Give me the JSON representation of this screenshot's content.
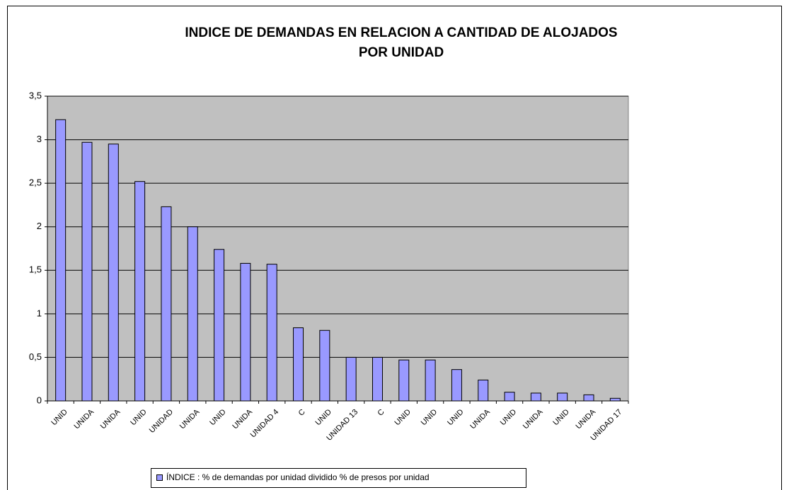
{
  "chart_data": {
    "type": "bar",
    "title": [
      "INDICE DE DEMANDAS EN RELACION A CANTIDAD DE ALOJADOS",
      "POR UNIDAD"
    ],
    "categories": [
      "UNID",
      "UNIDA",
      "UNIDA",
      "UNID",
      "UNIDAD",
      "UNIDA",
      "UNID",
      "UNIDA",
      "UNIDAD 4",
      "C",
      "UNID",
      "UNIDAD 13",
      "C",
      "UNID",
      "UNID",
      "UNID",
      "UNIDA",
      "UNID",
      "UNIDA",
      "UNID",
      "UNIDA",
      "UNIDAD 17"
    ],
    "series": [
      {
        "name": "ÍNDICE : % de demandas por unidad dividido % de presos por unidad",
        "color": "#9999ff",
        "values": [
          3.23,
          2.97,
          2.95,
          2.52,
          2.23,
          2.0,
          1.74,
          1.58,
          1.57,
          0.84,
          0.81,
          0.5,
          0.5,
          0.47,
          0.47,
          0.36,
          0.24,
          0.1,
          0.09,
          0.09,
          0.07,
          0.03
        ]
      }
    ],
    "ylim": [
      0,
      3.5
    ],
    "yticks": [
      0,
      {
        "value": 0.5,
        "label": "0,5"
      },
      1,
      {
        "value": 1.5,
        "label": "1,5"
      },
      2,
      {
        "value": 2.5,
        "label": "2,5"
      },
      3,
      {
        "value": 3.5,
        "label": "3,5"
      }
    ],
    "grid": true,
    "plot_background": "#c0c0c0",
    "legend": "bottom"
  }
}
